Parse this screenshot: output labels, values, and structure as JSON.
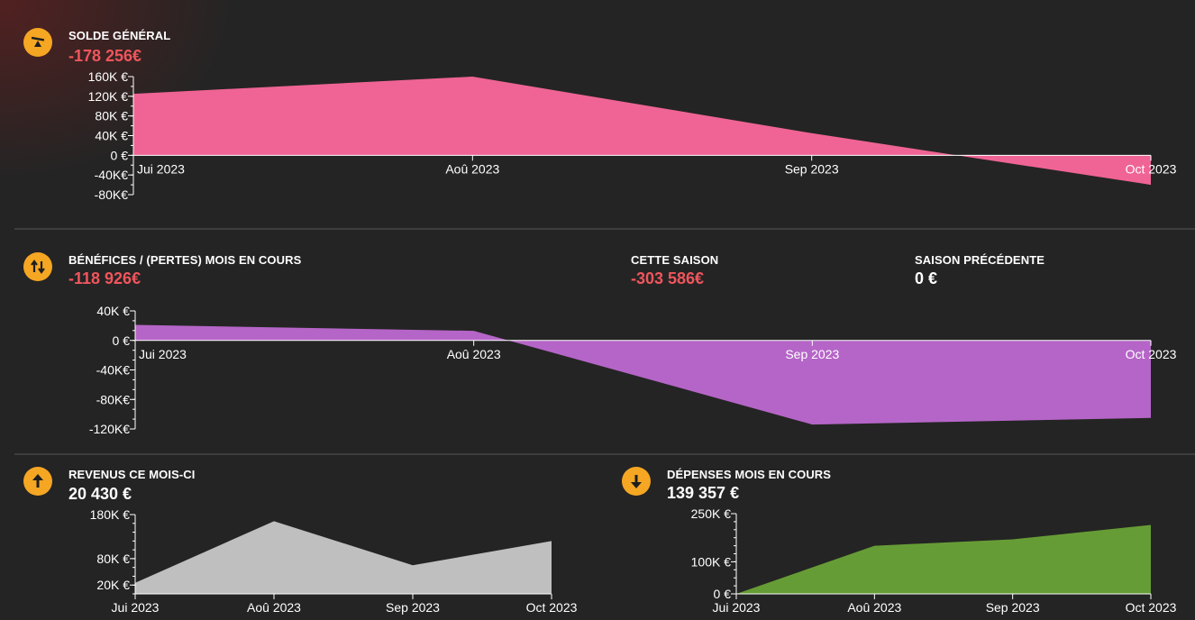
{
  "balance": {
    "label": "SOLDE GÉNÉRAL",
    "value": "-178 256€",
    "icon": "seesaw-icon",
    "chart_data": {
      "type": "area",
      "color": "#ef6494",
      "x": [
        "Jui 2023",
        "Aoû 2023",
        "Sep 2023",
        "Oct 2023"
      ],
      "values": [
        125000,
        160000,
        45000,
        -60000
      ],
      "yticks": [
        160000,
        120000,
        80000,
        40000,
        0,
        -40000,
        -80000
      ],
      "ytick_labels": [
        "160K €",
        "120K €",
        "80K €",
        "40K €",
        "0 €",
        "-40K€",
        "-80K€"
      ],
      "ylim": [
        -80000,
        160000
      ]
    }
  },
  "profit": {
    "label": "BÉNÉFICES / (PERTES) MOIS EN COURS",
    "value": "-118 926€",
    "icon": "up-down-arrows-icon",
    "season_label": "CETTE SAISON",
    "season_value": "-303 586€",
    "prev_season_label": "SAISON PRÉCÉDENTE",
    "prev_season_value": "0 €",
    "chart_data": {
      "type": "area",
      "color": "#b565c7",
      "x": [
        "Jui 2023",
        "Aoû 2023",
        "Sep 2023",
        "Oct 2023"
      ],
      "values": [
        21000,
        13000,
        -114000,
        -105000
      ],
      "yticks": [
        40000,
        0,
        -40000,
        -80000,
        -120000
      ],
      "ytick_labels": [
        "40K €",
        "0 €",
        "-40K€",
        "-80K€",
        "-120K€"
      ],
      "ylim": [
        -120000,
        40000
      ]
    }
  },
  "income": {
    "label": "REVENUS CE MOIS-CI",
    "value": "20 430 €",
    "icon": "arrow-up-icon",
    "chart_data": {
      "type": "area",
      "color": "#bfbfbf",
      "x": [
        "Jui 2023",
        "Aoû 2023",
        "Sep 2023",
        "Oct 2023"
      ],
      "values": [
        25000,
        165000,
        65000,
        120000
      ],
      "yticks": [
        180000,
        80000,
        20000
      ],
      "ytick_labels": [
        "180K €",
        "80K €",
        "20K €"
      ],
      "ylim": [
        0,
        180000
      ]
    }
  },
  "expenses": {
    "label": "DÉPENSES MOIS EN COURS",
    "value": "139 357 €",
    "icon": "arrow-down-icon",
    "chart_data": {
      "type": "area",
      "color": "#669c35",
      "x": [
        "Jui 2023",
        "Aoû 2023",
        "Sep 2023",
        "Oct 2023"
      ],
      "values": [
        0,
        150000,
        170000,
        215000
      ],
      "yticks": [
        250000,
        100000,
        0
      ],
      "ytick_labels": [
        "250K €",
        "100K €",
        "0 €"
      ],
      "ylim": [
        0,
        250000
      ]
    }
  }
}
